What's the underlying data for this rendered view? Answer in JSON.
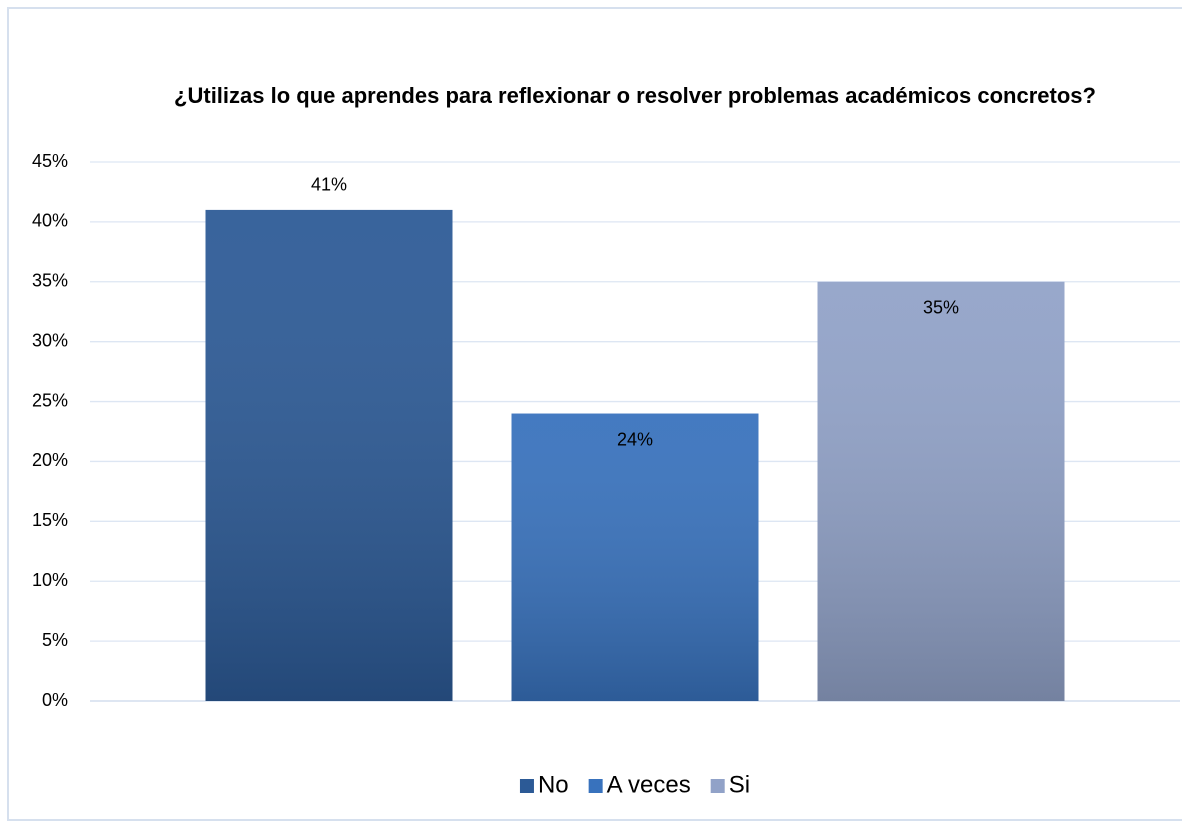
{
  "chart_data": {
    "type": "bar",
    "title": "¿Utilizas lo que aprendes para reflexionar o resolver problemas académicos concretos?",
    "categories": [
      null
    ],
    "series": [
      {
        "name": "No",
        "color": "#2c5a96",
        "values": [
          41
        ],
        "value_labels": [
          "41%"
        ]
      },
      {
        "name": "A veces",
        "color": "#3872bd",
        "values": [
          24
        ],
        "value_labels": [
          "24%"
        ]
      },
      {
        "name": "Si",
        "color": "#91a2c8",
        "values": [
          35
        ],
        "value_labels": [
          "35%"
        ]
      }
    ],
    "ylim": [
      0,
      45
    ],
    "yticks": [
      {
        "value": 0,
        "label": "0%"
      },
      {
        "value": 5,
        "label": "5%"
      },
      {
        "value": 10,
        "label": "10%"
      },
      {
        "value": 15,
        "label": "15%"
      },
      {
        "value": 20,
        "label": "20%"
      },
      {
        "value": 25,
        "label": "25%"
      },
      {
        "value": 30,
        "label": "30%"
      },
      {
        "value": 35,
        "label": "35%"
      },
      {
        "value": 40,
        "label": "40%"
      },
      {
        "value": 45,
        "label": "45%"
      }
    ],
    "grid": true,
    "legend": "bottom"
  }
}
